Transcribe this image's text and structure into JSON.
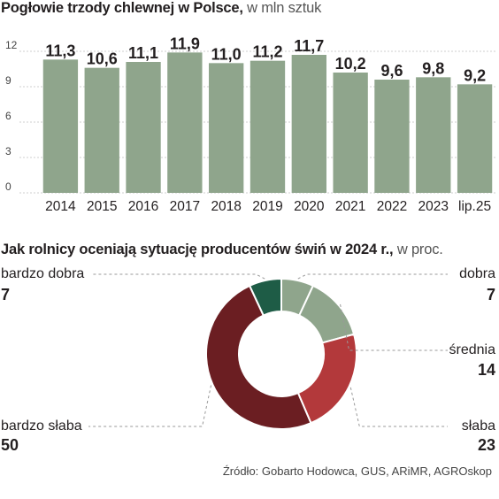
{
  "chart_data": [
    {
      "type": "bar",
      "title": "Pogłowie trzody chlewnej w Polsce,",
      "subtitle": "w mln sztuk",
      "categories": [
        "2014",
        "2015",
        "2016",
        "2017",
        "2018",
        "2019",
        "2020",
        "2021",
        "2022",
        "2023",
        "lip.25"
      ],
      "values": [
        11.3,
        10.6,
        11.1,
        11.9,
        11.0,
        11.2,
        11.7,
        10.2,
        9.6,
        9.8,
        9.2
      ],
      "value_labels": [
        "11,3",
        "10,6",
        "11,1",
        "11,9",
        "11,0",
        "11,2",
        "11,7",
        "10,2",
        "9,6",
        "9,8",
        "9,2"
      ],
      "yticks": [
        "0",
        "3",
        "6",
        "9",
        "12"
      ],
      "ylim": [
        0,
        12
      ],
      "grid": true,
      "color": "#8fa58c"
    },
    {
      "type": "pie",
      "title": "Jak rolnicy oceniają sytuację producentów świń w 2024 r.,",
      "subtitle": "w proc.",
      "slices": [
        {
          "label": "dobra",
          "value": 7,
          "color": "#8fa58c"
        },
        {
          "label": "średnia",
          "value": 14,
          "color": "#8fa58c"
        },
        {
          "label": "słaba",
          "value": 23,
          "color": "#b3393b"
        },
        {
          "label": "bardzo słaba",
          "value": 50,
          "color": "#6b1e22"
        },
        {
          "label": "bardzo dobra",
          "value": 7,
          "color": "#1e5c46"
        }
      ]
    }
  ],
  "source": "Źródło: Gobarto Hodowca, GUS, ARiMR, AGROskop"
}
